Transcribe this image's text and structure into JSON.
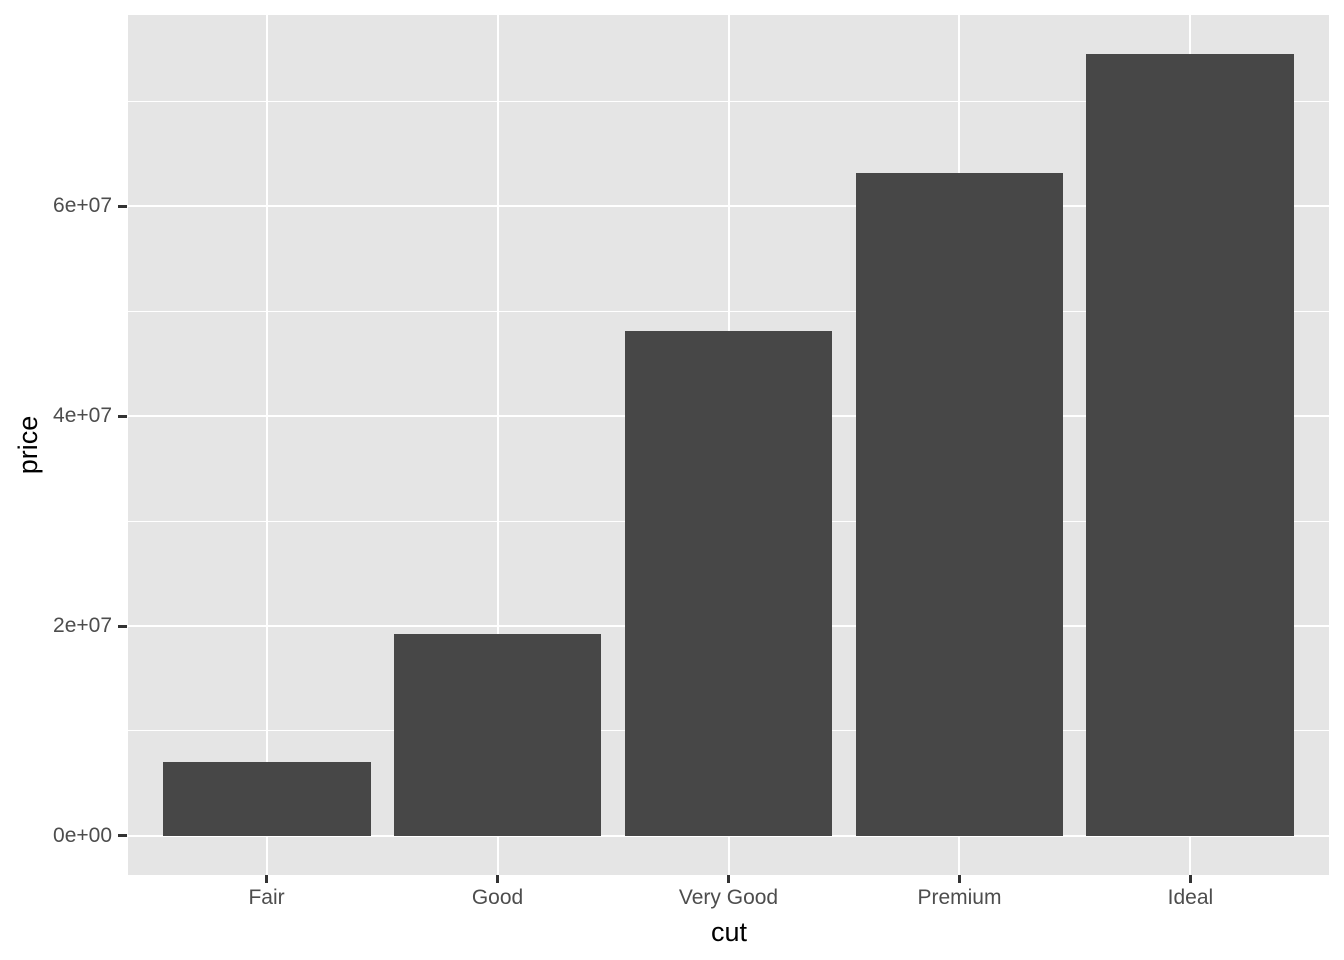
{
  "chart_data": {
    "type": "bar",
    "title": "",
    "xlabel": "cut",
    "ylabel": "price",
    "categories": [
      "Fair",
      "Good",
      "Very Good",
      "Premium",
      "Ideal"
    ],
    "values": [
      7017600,
      19275009,
      48107623,
      63221498,
      74513487
    ],
    "series_note": "single series: total price per cut category",
    "ylim": [
      0,
      78000000
    ],
    "ytick_values": [
      0,
      20000000,
      40000000,
      60000000
    ],
    "ytick_labels": [
      "0e+00",
      "2e+07",
      "4e+07",
      "6e+07"
    ],
    "ytick_minor_values": [
      10000000,
      30000000,
      50000000,
      70000000
    ],
    "grid": "white major+minor horizontal lines, white major vertical lines at category centers, on grey panel",
    "legend": "none",
    "style": "ggplot2 theme_grey",
    "colors": {
      "bar_fill": "#474747",
      "panel_bg": "#E5E5E5",
      "gridline": "#FFFFFF",
      "tick_label": "#4D4D4D",
      "axis_title": "#000000",
      "tick_mark": "#333333",
      "page_bg": "#FFFFFF"
    }
  }
}
